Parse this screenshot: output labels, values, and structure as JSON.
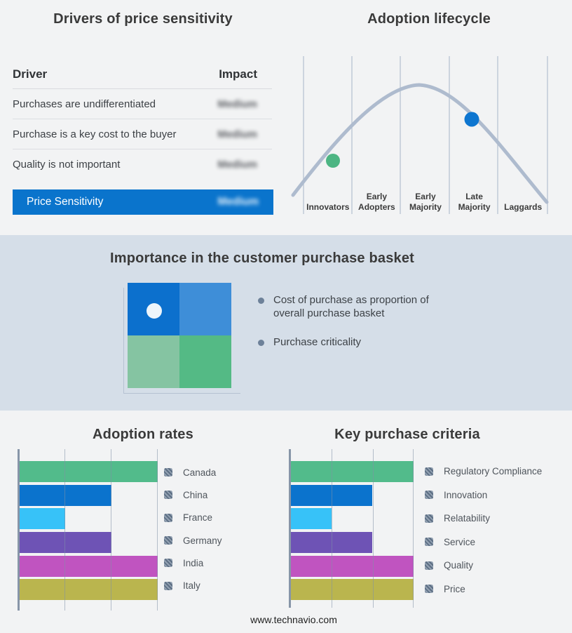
{
  "drivers": {
    "title": "Drivers of price sensitivity",
    "columns": [
      "Driver",
      "Impact"
    ],
    "impact_values_blurred": true,
    "rows": [
      {
        "driver": "Purchases are undifferentiated",
        "impact": "Medium"
      },
      {
        "driver": "Purchase is a key cost to the buyer",
        "impact": "Medium"
      },
      {
        "driver": "Quality is not important",
        "impact": "Medium"
      }
    ],
    "highlight_row": {
      "driver": "Price Sensitivity",
      "impact": "Medium",
      "background": "#0a74cc"
    }
  },
  "lifecycle": {
    "title": "Adoption lifecycle",
    "stages": [
      "Innovators",
      "Early\nAdopters",
      "Early\nMajority",
      "Late\nMajority",
      "Laggards"
    ],
    "curve_color": "#aebbce",
    "gridline_color": "#b8c3d3",
    "early_marker_color": "#4db583",
    "late_marker_color": "#0e76d0"
  },
  "basket": {
    "title": "Importance in the customer purchase basket",
    "band_background": "#d5dee8",
    "bullets": [
      "Cost of purchase as proportion of\noverall purchase basket",
      "Purchase criticality"
    ],
    "matrix": {
      "top_left": "#0c70cd",
      "top_right": "#3e8ed8",
      "bottom_left": "#85c4a2",
      "bottom_right": "#54ba85",
      "marker_color": "#edf5fb",
      "marker_quadrant": "top_left"
    }
  },
  "footer": {
    "url": "www.technavio.com"
  },
  "chart_data": [
    {
      "id": "adoption_rates",
      "type": "bar",
      "orientation": "horizontal",
      "title": "Adoption rates",
      "categories": [
        "Canada",
        "China",
        "France",
        "Germany",
        "India",
        "Italy"
      ],
      "values": [
        3,
        2,
        1,
        2,
        3,
        3
      ],
      "xlim": [
        0,
        3
      ],
      "colors": [
        "#52bb8b",
        "#0b73cd",
        "#37c2f8",
        "#6e53b5",
        "#c054c0",
        "#bab54e"
      ],
      "legend_position": "right",
      "gridlines": true,
      "axis_tick_labels": false,
      "note": "axis unlabeled; bar lengths measured in gridline units"
    },
    {
      "id": "key_purchase_criteria",
      "type": "bar",
      "orientation": "horizontal",
      "title": "Key purchase criteria",
      "categories": [
        "Regulatory Compliance",
        "Innovation",
        "Relatability",
        "Service",
        "Quality",
        "Price"
      ],
      "values": [
        3,
        2,
        1,
        2,
        3,
        3
      ],
      "xlim": [
        0,
        3
      ],
      "colors": [
        "#52bb8b",
        "#0b73cd",
        "#37c2f8",
        "#6e53b5",
        "#c054c0",
        "#bab54e"
      ],
      "legend_position": "right",
      "gridlines": true,
      "axis_tick_labels": false,
      "note": "axis unlabeled; bar lengths measured in gridline units"
    },
    {
      "id": "adoption_lifecycle",
      "type": "line",
      "title": "Adoption lifecycle",
      "shape": "bell curve",
      "x_categories": [
        "Innovators",
        "Early Adopters",
        "Early Majority",
        "Late Majority",
        "Laggards"
      ],
      "markers": [
        {
          "position": "between Innovators and Early Adopters (rising slope)",
          "color": "#4db583"
        },
        {
          "position": "Late Majority (falling slope)",
          "color": "#0e76d0"
        }
      ]
    }
  ]
}
